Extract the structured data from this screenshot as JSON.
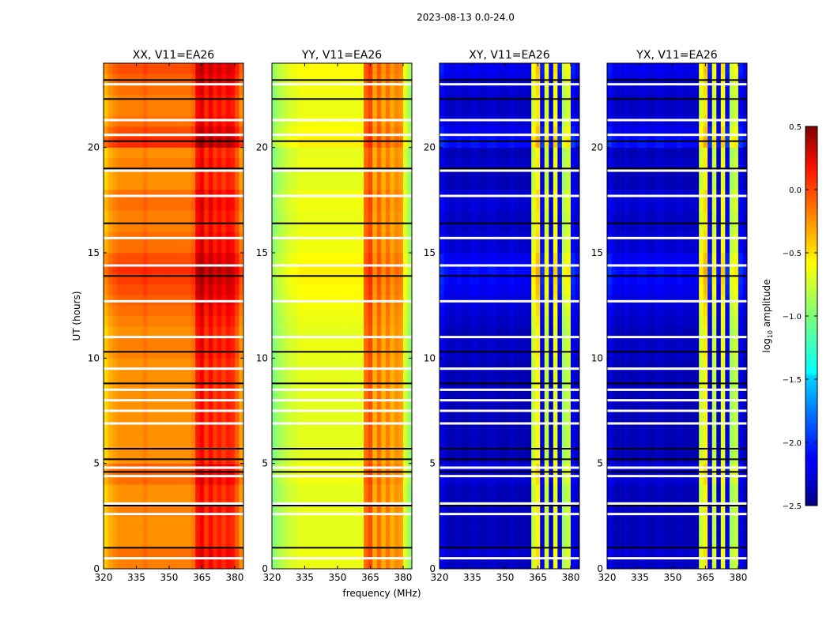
{
  "suptitle": "2023-08-13 0.0-24.0",
  "chart_data": {
    "type": "heatmap",
    "xlabel": "frequency (MHz)",
    "ylabel": "UT (hours)",
    "xlim": [
      320,
      384
    ],
    "ylim": [
      0,
      24
    ],
    "xticks": [
      320,
      335,
      350,
      365,
      380
    ],
    "yticks": [
      0,
      5,
      10,
      15,
      20
    ],
    "freq_bin_mhz": 2,
    "time_bin_hours": 0.5,
    "panels": [
      {
        "title": "XX, V11=EA26",
        "col_profile": [
          -0.5,
          -0.4,
          -0.35,
          -0.3,
          -0.3,
          -0.3,
          -0.3,
          -0.3,
          -0.3,
          -0.25,
          -0.3,
          -0.3,
          -0.3,
          -0.3,
          -0.3,
          -0.3,
          -0.3,
          -0.3,
          -0.3,
          -0.3,
          -0.25,
          0.05,
          0.15,
          -0.05,
          0.1,
          -0.05,
          0.05,
          -0.05,
          0.05,
          0.0,
          -0.15,
          -0.35
        ],
        "row_scale": 1.0
      },
      {
        "title": "YY, V11=EA26",
        "col_profile": [
          -1.0,
          -0.9,
          -0.85,
          -0.8,
          -0.75,
          -0.75,
          -0.7,
          -0.7,
          -0.7,
          -0.7,
          -0.7,
          -0.7,
          -0.7,
          -0.7,
          -0.7,
          -0.7,
          -0.7,
          -0.7,
          -0.7,
          -0.7,
          -0.7,
          -0.2,
          -0.1,
          -0.4,
          -0.2,
          -0.4,
          -0.25,
          -0.4,
          -0.3,
          -0.35,
          -0.75,
          -0.95
        ],
        "row_scale": 0.4
      },
      {
        "title": "XY, V11=EA26",
        "col_profile": [
          -2.2,
          -2.3,
          -2.35,
          -2.35,
          -2.3,
          -2.35,
          -2.35,
          -2.3,
          -2.3,
          -2.35,
          -2.35,
          -2.3,
          -2.3,
          -2.35,
          -2.35,
          -2.35,
          -2.3,
          -2.35,
          -2.35,
          -2.35,
          -2.35,
          -0.8,
          -0.6,
          -2.2,
          -0.8,
          -2.3,
          -0.7,
          -2.2,
          -0.9,
          -0.8,
          -2.2,
          -2.3
        ],
        "row_scale": 0.8
      },
      {
        "title": "YX, V11=EA26",
        "col_profile": [
          -2.2,
          -2.3,
          -2.35,
          -2.35,
          -2.3,
          -2.35,
          -2.35,
          -2.3,
          -2.3,
          -2.35,
          -2.35,
          -2.3,
          -2.3,
          -2.35,
          -2.35,
          -2.35,
          -2.3,
          -2.35,
          -2.35,
          -2.35,
          -2.35,
          -0.8,
          -0.6,
          -2.2,
          -0.8,
          -2.3,
          -0.7,
          -2.2,
          -0.9,
          -0.8,
          -2.2,
          -2.3
        ],
        "row_scale": 0.8
      }
    ],
    "row_offset": [
      0.05,
      0.1,
      0,
      0,
      0,
      0.05,
      0,
      0,
      0.1,
      0.15,
      0,
      0,
      0,
      0,
      0,
      0,
      0,
      0,
      0,
      0,
      0.05,
      0.05,
      0,
      0.05,
      0.1,
      0.15,
      0.2,
      0.25,
      0.3,
      0.2,
      0.1,
      0.1,
      0.05,
      0.05,
      0.1,
      0.1,
      0,
      0,
      0.05,
      0,
      0.3,
      0.2,
      0.1,
      0.05,
      0.05,
      0.1,
      0.15,
      0.2
    ],
    "flagged_hours": [
      0.5,
      2.6,
      3.1,
      4.4,
      4.8,
      6.9,
      7.5,
      8.0,
      8.5,
      9.5,
      11.0,
      12.7,
      14.4,
      15.7,
      17.7,
      18.9,
      20.6,
      21.3,
      23.0
    ],
    "separator_hours": [
      1.0,
      3.0,
      4.6,
      5.2,
      5.7,
      8.8,
      10.3,
      13.9,
      16.4,
      19.0,
      20.3,
      22.3,
      23.2
    ],
    "colorbar": {
      "label": "log10 amplitude",
      "label_main": "log",
      "label_sub": "10",
      "label_rest": " amplitude",
      "range": [
        -2.5,
        0.5
      ],
      "colormap": "jet",
      "ticks": [
        "0.5",
        "0.0",
        "−0.5",
        "−1.0",
        "−1.5",
        "−2.0",
        "−2.5"
      ],
      "tick_values": [
        0.5,
        0.0,
        -0.5,
        -1.0,
        -1.5,
        -2.0,
        -2.5
      ]
    }
  }
}
